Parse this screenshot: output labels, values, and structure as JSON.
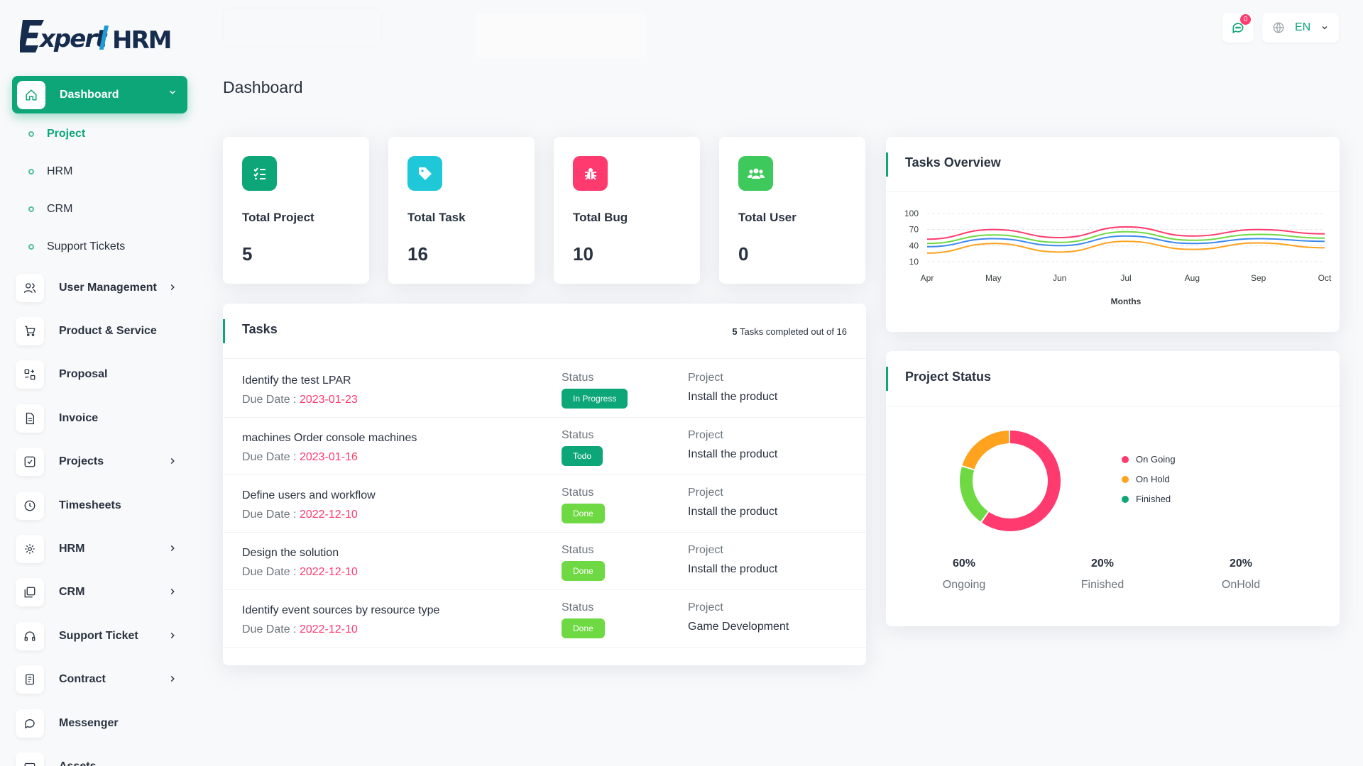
{
  "app": {
    "logo_text": "ExpertHRM"
  },
  "header": {
    "notification_count": "0",
    "language": "EN"
  },
  "sidebar": {
    "active": {
      "label": "Dashboard"
    },
    "sub_items": [
      {
        "label": "Project",
        "active": true
      },
      {
        "label": "HRM"
      },
      {
        "label": "CRM"
      },
      {
        "label": "Support Tickets"
      }
    ],
    "items": [
      {
        "label": "User Management",
        "icon": "users-icon",
        "expandable": true
      },
      {
        "label": "Product & Service",
        "icon": "cart-icon",
        "expandable": false
      },
      {
        "label": "Proposal",
        "icon": "proposal-icon",
        "expandable": false
      },
      {
        "label": "Invoice",
        "icon": "invoice-icon",
        "expandable": false
      },
      {
        "label": "Projects",
        "icon": "checkbox-icon",
        "expandable": true
      },
      {
        "label": "Timesheets",
        "icon": "clock-icon",
        "expandable": false
      },
      {
        "label": "HRM",
        "icon": "hrm-icon",
        "expandable": true
      },
      {
        "label": "CRM",
        "icon": "crm-icon",
        "expandable": true
      },
      {
        "label": "Support Ticket",
        "icon": "headphones-icon",
        "expandable": true
      },
      {
        "label": "Contract",
        "icon": "contract-icon",
        "expandable": true
      },
      {
        "label": "Messenger",
        "icon": "chat-icon",
        "expandable": false
      },
      {
        "label": "Assets",
        "icon": "assets-icon",
        "expandable": false
      }
    ]
  },
  "main": {
    "title": "Dashboard",
    "stats": [
      {
        "label": "Total Project",
        "value": "5",
        "color": "#0ca678",
        "icon": "list-check-icon"
      },
      {
        "label": "Total Task",
        "value": "16",
        "color": "#1ec8d8",
        "icon": "tag-icon"
      },
      {
        "label": "Total Bug",
        "value": "10",
        "color": "#ff3a6e",
        "icon": "bug-icon"
      },
      {
        "label": "Total User",
        "value": "0",
        "color": "#3ec95c",
        "icon": "users-group-icon"
      }
    ],
    "tasks": {
      "title": "Tasks",
      "completed_count": "5",
      "completed_suffix": "Tasks completed out of 16",
      "status_label": "Status",
      "project_label": "Project",
      "due_label": "Due Date : ",
      "rows": [
        {
          "name": "Identify the test LPAR",
          "due": "2023-01-23",
          "status": "In Progress",
          "project": "Install the product"
        },
        {
          "name": "machines Order console machines",
          "due": "2023-01-16",
          "status": "Todo",
          "project": "Install the product"
        },
        {
          "name": "Define users and workflow",
          "due": "2022-12-10",
          "status": "Done",
          "project": "Install the product"
        },
        {
          "name": "Design the solution",
          "due": "2022-12-10",
          "status": "Done",
          "project": "Install the product"
        },
        {
          "name": "Identify event sources by resource type",
          "due": "2022-12-10",
          "status": "Done",
          "project": "Game Development"
        }
      ]
    },
    "tasks_overview": {
      "title": "Tasks Overview"
    },
    "project_status": {
      "title": "Project Status",
      "legend": [
        "On Going",
        "On Hold",
        "Finished"
      ],
      "summary": [
        {
          "pct": "60%",
          "label": "Ongoing"
        },
        {
          "pct": "20%",
          "label": "Finished"
        },
        {
          "pct": "20%",
          "label": "OnHold"
        }
      ]
    }
  },
  "chart_data": [
    {
      "type": "line",
      "title": "Tasks Overview",
      "xlabel": "Months",
      "ylabel": "",
      "categories": [
        "Apr",
        "May",
        "Jun",
        "Jul",
        "Aug",
        "Sep",
        "Oct"
      ],
      "y_ticks": [
        10,
        40,
        70,
        100
      ],
      "series": [
        {
          "values": [
            52,
            70,
            55,
            75,
            58,
            70,
            62
          ],
          "color": "#ff3a6e"
        },
        {
          "values": [
            44,
            60,
            46,
            66,
            50,
            61,
            54
          ],
          "color": "#6fd943"
        },
        {
          "values": [
            38,
            53,
            40,
            58,
            44,
            53,
            48
          ],
          "color": "#3c89ee"
        },
        {
          "values": [
            26,
            44,
            28,
            48,
            33,
            45,
            36
          ],
          "color": "#ffa21d"
        }
      ]
    },
    {
      "type": "pie",
      "title": "Project Status",
      "categories": [
        "On Going",
        "On Hold",
        "Finished"
      ],
      "values": [
        60,
        20,
        20
      ],
      "colors": [
        "#ff3a6e",
        "#ffa21d",
        "#0ca678"
      ]
    }
  ],
  "colors": {
    "accent": "#0ca678",
    "danger": "#ff3a6e",
    "done": "#6fd943"
  }
}
